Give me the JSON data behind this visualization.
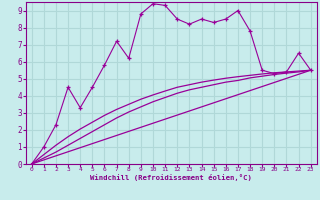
{
  "xlabel": "Windchill (Refroidissement éolien,°C)",
  "background_color": "#c8ecec",
  "grid_color": "#b0d8d8",
  "line_color": "#990099",
  "xlim": [
    -0.5,
    23.5
  ],
  "ylim": [
    0,
    9.5
  ],
  "xticks": [
    0,
    1,
    2,
    3,
    4,
    5,
    6,
    7,
    8,
    9,
    10,
    11,
    12,
    13,
    14,
    15,
    16,
    17,
    18,
    19,
    20,
    21,
    22,
    23
  ],
  "yticks": [
    0,
    1,
    2,
    3,
    4,
    5,
    6,
    7,
    8,
    9
  ],
  "line1_x": [
    0,
    1,
    2,
    3,
    4,
    5,
    6,
    7,
    8,
    9,
    10,
    11,
    12,
    13,
    14,
    15,
    16,
    17,
    18,
    19,
    20,
    21,
    22,
    23
  ],
  "line1_y": [
    0.0,
    1.0,
    2.3,
    4.5,
    3.3,
    4.5,
    5.8,
    7.2,
    6.2,
    8.8,
    9.4,
    9.3,
    8.5,
    8.2,
    8.5,
    8.3,
    8.5,
    9.0,
    7.8,
    5.5,
    5.3,
    5.4,
    6.5,
    5.5
  ],
  "line2_x": [
    0,
    23
  ],
  "line2_y": [
    0.0,
    5.5
  ],
  "line3_x": [
    0,
    1,
    2,
    3,
    4,
    5,
    6,
    7,
    8,
    9,
    10,
    11,
    12,
    13,
    14,
    15,
    16,
    17,
    18,
    19,
    20,
    21,
    22,
    23
  ],
  "line3_y": [
    0.0,
    0.35,
    0.7,
    1.1,
    1.5,
    1.9,
    2.3,
    2.7,
    3.05,
    3.35,
    3.65,
    3.9,
    4.15,
    4.35,
    4.5,
    4.65,
    4.8,
    4.9,
    5.05,
    5.15,
    5.25,
    5.33,
    5.4,
    5.5
  ],
  "line4_x": [
    0,
    1,
    2,
    3,
    4,
    5,
    6,
    7,
    8,
    9,
    10,
    11,
    12,
    13,
    14,
    15,
    16,
    17,
    18,
    19,
    20,
    21,
    22,
    23
  ],
  "line4_y": [
    0.0,
    0.55,
    1.1,
    1.6,
    2.05,
    2.45,
    2.85,
    3.2,
    3.5,
    3.8,
    4.05,
    4.28,
    4.5,
    4.65,
    4.8,
    4.92,
    5.03,
    5.12,
    5.2,
    5.28,
    5.35,
    5.4,
    5.45,
    5.5
  ]
}
